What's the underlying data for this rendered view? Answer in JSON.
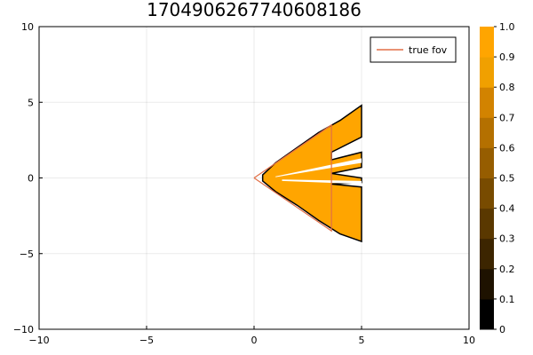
{
  "chart_data": {
    "type": "heatmap",
    "title": "1704906267740608186",
    "xlim": [
      -10,
      10
    ],
    "ylim": [
      -10,
      10
    ],
    "x_ticks": [
      "−10",
      "−5",
      "0",
      "5",
      "10"
    ],
    "y_ticks": [
      "−10",
      "−5",
      "0",
      "5",
      "10"
    ],
    "grid": true,
    "legend": {
      "placement": "top-right",
      "entries": [
        "true fov"
      ]
    },
    "colorbar": {
      "range": [
        0,
        1
      ],
      "ticks": [
        "0",
        "0.1",
        "0.2",
        "0.3",
        "0.4",
        "0.5",
        "0.6",
        "0.7",
        "0.8",
        "0.9",
        "1.0"
      ],
      "colors": [
        "#000000",
        "#1e1200",
        "#3c2500",
        "#5a3800",
        "#784b00",
        "#965d00",
        "#b47000",
        "#d28300",
        "#f0a000",
        "#ffa500"
      ]
    },
    "fill_color": "#ffa500",
    "edge_color": "#000000",
    "fov_line_color": "#e26f46",
    "true_fov": {
      "x": [
        0,
        3.6,
        3.6,
        0
      ],
      "y": [
        0,
        3.5,
        -3.5,
        0
      ]
    },
    "coverage_region": {
      "x": [
        0.4,
        1.0,
        2.0,
        3.0,
        4.0,
        5.0,
        5.0,
        3.6,
        3.6,
        5.0,
        5.0,
        3.6,
        5.0,
        5.0,
        3.6,
        5.0,
        5.0,
        4.0,
        3.0,
        2.0,
        1.0,
        0.4
      ],
      "y": [
        0.2,
        1.0,
        2.0,
        3.0,
        3.8,
        4.8,
        2.7,
        1.7,
        1.2,
        1.7,
        0.7,
        0.3,
        0.0,
        -0.3,
        -0.4,
        -0.6,
        -4.2,
        -3.7,
        -2.8,
        -1.8,
        -0.9,
        -0.2
      ]
    },
    "white_gaps": [
      {
        "x": [
          1.0,
          5.0,
          5.0,
          1.0
        ],
        "y": [
          0.1,
          1.3,
          1.0,
          0.05
        ]
      },
      {
        "x": [
          1.3,
          5.0,
          5.0,
          1.3
        ],
        "y": [
          -0.1,
          -0.2,
          -0.4,
          -0.2
        ]
      }
    ]
  }
}
